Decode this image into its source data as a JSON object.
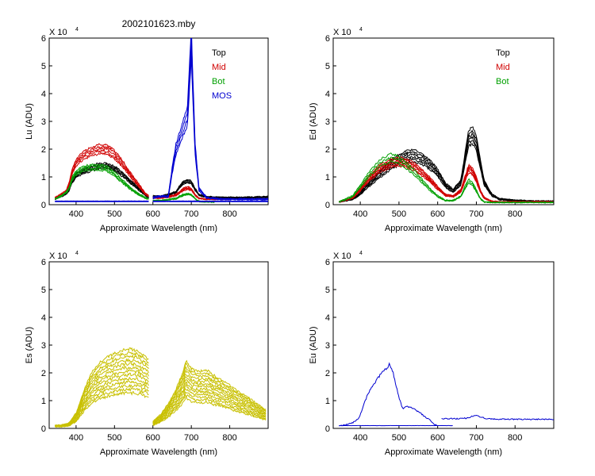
{
  "figure_title": "2002101623.mby",
  "exponent_base": "X 10",
  "exponent_power": "4",
  "chart_data": [
    {
      "type": "line",
      "id": "lu",
      "ylabel": "Lu (ADU)",
      "xlabel": "Approximate Wavelength (nm)",
      "xlim": [
        330,
        900
      ],
      "ylim": [
        0,
        6
      ],
      "y_unit_scale": "x10^4",
      "xticks": [
        400,
        500,
        600,
        700,
        800
      ],
      "yticks": [
        0,
        1,
        2,
        3,
        4,
        5,
        6
      ],
      "legend": {
        "placement": "top-right",
        "entries": [
          {
            "label": "Top",
            "color": "#000000"
          },
          {
            "label": "Mid",
            "color": "#d00000"
          },
          {
            "label": "Bot",
            "color": "#00a000"
          },
          {
            "label": "MOS",
            "color": "#0000d0"
          }
        ]
      },
      "series": [
        {
          "name": "Top",
          "color": "#000000",
          "count": 5,
          "spread": 0.07,
          "segments": [
            {
              "x": [
                345,
                360,
                375,
                382,
                390,
                400,
                420,
                440,
                460,
                480,
                500,
                520,
                540,
                560,
                580,
                590
              ],
              "y": [
                0.2,
                0.3,
                0.4,
                0.55,
                0.85,
                1.05,
                1.2,
                1.3,
                1.4,
                1.4,
                1.3,
                1.1,
                0.85,
                0.6,
                0.35,
                0.25
              ]
            },
            {
              "x": [
                600,
                620,
                640,
                660,
                670,
                680,
                690,
                700,
                710,
                720,
                740,
                760,
                800,
                850,
                900
              ],
              "y": [
                0.3,
                0.3,
                0.35,
                0.45,
                0.65,
                0.8,
                0.85,
                0.8,
                0.55,
                0.35,
                0.28,
                0.26,
                0.25,
                0.26,
                0.28
              ]
            }
          ]
        },
        {
          "name": "Mid",
          "color": "#d00000",
          "count": 5,
          "spread": 0.08,
          "segments": [
            {
              "x": [
                345,
                360,
                375,
                382,
                390,
                400,
                420,
                440,
                460,
                480,
                500,
                520,
                540,
                560,
                580,
                590
              ],
              "y": [
                0.25,
                0.35,
                0.5,
                0.75,
                1.2,
                1.5,
                1.8,
                1.9,
                2.0,
                2.0,
                1.8,
                1.5,
                1.1,
                0.75,
                0.4,
                0.3
              ]
            },
            {
              "x": [
                600,
                620,
                640,
                660,
                670,
                680,
                690,
                700,
                710,
                720,
                740,
                760,
                800
              ],
              "y": [
                0.25,
                0.25,
                0.28,
                0.35,
                0.45,
                0.55,
                0.6,
                0.55,
                0.35,
                0.22,
                0.2,
                0.2,
                0.2
              ]
            }
          ]
        },
        {
          "name": "Bot",
          "color": "#00a000",
          "count": 4,
          "spread": 0.07,
          "segments": [
            {
              "x": [
                345,
                360,
                375,
                382,
                390,
                400,
                420,
                440,
                460,
                480,
                500,
                520,
                540,
                560,
                580,
                590
              ],
              "y": [
                0.2,
                0.3,
                0.45,
                0.6,
                0.95,
                1.15,
                1.3,
                1.35,
                1.35,
                1.3,
                1.1,
                0.85,
                0.6,
                0.4,
                0.25,
                0.2
              ]
            },
            {
              "x": [
                600,
                620,
                640,
                660,
                670,
                680,
                690,
                700,
                710,
                720,
                740,
                760
              ],
              "y": [
                0.15,
                0.15,
                0.18,
                0.22,
                0.3,
                0.35,
                0.38,
                0.35,
                0.22,
                0.12,
                0.1,
                0.1
              ]
            }
          ]
        },
        {
          "name": "MOS",
          "color": "#0000d0",
          "count": 4,
          "spread": 0.1,
          "segments": [
            {
              "x": [
                600,
                620,
                640,
                650,
                660,
                670,
                680,
                690,
                695,
                700,
                705,
                710,
                720,
                740,
                780,
                850,
                900
              ],
              "y": [
                0.25,
                0.3,
                0.3,
                1.2,
                2.0,
                2.4,
                2.8,
                3.2,
                4.5,
                5.9,
                3.8,
                2.0,
                0.55,
                0.25,
                0.2,
                0.2,
                0.2
              ]
            },
            {
              "x": [
                345,
                400,
                450,
                500,
                550,
                590
              ],
              "y": [
                0.12,
                0.12,
                0.12,
                0.12,
                0.12,
                0.12
              ]
            },
            {
              "x": [
                600,
                650,
                700,
                750,
                800,
                850,
                900
              ],
              "y": [
                0.12,
                0.12,
                0.12,
                0.12,
                0.12,
                0.12,
                0.12
              ]
            }
          ]
        }
      ]
    },
    {
      "type": "line",
      "id": "ed",
      "ylabel": "Ed (ADU)",
      "xlabel": "Approximate Wavelength (nm)",
      "xlim": [
        330,
        900
      ],
      "ylim": [
        0,
        6
      ],
      "y_unit_scale": "x10^4",
      "xticks": [
        400,
        500,
        600,
        700,
        800
      ],
      "yticks": [
        0,
        1,
        2,
        3,
        4,
        5,
        6
      ],
      "legend": {
        "placement": "top-right",
        "entries": [
          {
            "label": "Top",
            "color": "#000000"
          },
          {
            "label": "Mid",
            "color": "#d00000"
          },
          {
            "label": "Bot",
            "color": "#00a000"
          }
        ]
      },
      "series": [
        {
          "name": "Top",
          "color": "#000000",
          "count": 6,
          "spread": 0.12,
          "segments": [
            {
              "x": [
                345,
                380,
                400,
                420,
                450,
                480,
                500,
                520,
                540,
                560,
                580,
                600,
                620,
                640,
                660,
                670,
                680,
                690,
                700,
                710,
                720,
                740,
                760,
                800,
                850,
                900
              ],
              "y": [
                0.1,
                0.2,
                0.4,
                0.7,
                1.1,
                1.45,
                1.6,
                1.75,
                1.75,
                1.65,
                1.45,
                1.15,
                0.7,
                0.5,
                0.8,
                1.6,
                2.4,
                2.5,
                2.2,
                1.5,
                0.8,
                0.35,
                0.2,
                0.15,
                0.12,
                0.12
              ]
            }
          ]
        },
        {
          "name": "Mid",
          "color": "#d00000",
          "count": 6,
          "spread": 0.1,
          "segments": [
            {
              "x": [
                345,
                380,
                400,
                420,
                450,
                480,
                500,
                520,
                540,
                560,
                580,
                600,
                620,
                640,
                660,
                670,
                680,
                690,
                700,
                710,
                720,
                740,
                760,
                800,
                850,
                900
              ],
              "y": [
                0.1,
                0.25,
                0.55,
                0.9,
                1.3,
                1.5,
                1.55,
                1.5,
                1.35,
                1.15,
                0.9,
                0.6,
                0.35,
                0.3,
                0.5,
                0.9,
                1.3,
                1.2,
                0.9,
                0.5,
                0.25,
                0.12,
                0.1,
                0.1,
                0.1,
                0.1
              ]
            }
          ]
        },
        {
          "name": "Bot",
          "color": "#00a000",
          "count": 3,
          "spread": 0.08,
          "segments": [
            {
              "x": [
                345,
                380,
                400,
                420,
                450,
                480,
                500,
                520,
                540,
                560,
                580,
                600,
                620,
                640,
                660,
                670,
                680,
                690,
                700,
                710,
                720,
                740,
                760,
                800,
                850,
                900
              ],
              "y": [
                0.1,
                0.3,
                0.65,
                1.05,
                1.5,
                1.7,
                1.6,
                1.4,
                1.15,
                0.85,
                0.55,
                0.3,
                0.15,
                0.15,
                0.3,
                0.6,
                0.85,
                0.75,
                0.5,
                0.22,
                0.1,
                0.08,
                0.08,
                0.08,
                0.08,
                0.08
              ]
            }
          ]
        }
      ]
    },
    {
      "type": "line",
      "id": "es",
      "ylabel": "Es (ADU)",
      "xlabel": "Approximate Wavelength (nm)",
      "xlim": [
        330,
        900
      ],
      "ylim": [
        0,
        6
      ],
      "y_unit_scale": "x10^4",
      "xticks": [
        400,
        500,
        600,
        700,
        800
      ],
      "yticks": [
        0,
        1,
        2,
        3,
        4,
        5,
        6
      ],
      "series": [
        {
          "name": "",
          "color": "#c8c000",
          "count": 13,
          "spread_from": 0.45,
          "spread_to": 1.0,
          "segments": [
            {
              "x": [
                345,
                360,
                380,
                400,
                420,
                440,
                460,
                480,
                500,
                520,
                540,
                560,
                580,
                590
              ],
              "y": [
                0.12,
                0.12,
                0.18,
                0.55,
                1.35,
                2.0,
                2.35,
                2.55,
                2.7,
                2.8,
                2.85,
                2.8,
                2.6,
                2.45
              ]
            },
            {
              "x": [
                600,
                620,
                640,
                660,
                680,
                685,
                700,
                720,
                740,
                760,
                780,
                800,
                820,
                850,
                880,
                895
              ],
              "y": [
                0.25,
                0.5,
                0.9,
                1.4,
                2.1,
                2.45,
                2.15,
                2.05,
                2.1,
                1.9,
                1.75,
                1.55,
                1.35,
                1.1,
                0.8,
                0.65
              ]
            }
          ]
        }
      ]
    },
    {
      "type": "line",
      "id": "eu",
      "ylabel": "Eu (ADU)",
      "xlabel": "Approximate Wavelength (nm)",
      "xlim": [
        330,
        900
      ],
      "ylim": [
        0,
        6
      ],
      "y_unit_scale": "x10^4",
      "xticks": [
        400,
        500,
        600,
        700,
        800
      ],
      "yticks": [
        0,
        1,
        2,
        3,
        4,
        5,
        6
      ],
      "series": [
        {
          "name": "",
          "color": "#0000d0",
          "count": 1,
          "spread": 0,
          "segments": [
            {
              "x": [
                345,
                360,
                380,
                395,
                400,
                410,
                420,
                430,
                440,
                450,
                460,
                470,
                475,
                480,
                485,
                490,
                500,
                510,
                520,
                540,
                560,
                580,
                590,
                600
              ],
              "y": [
                0.1,
                0.12,
                0.2,
                0.35,
                0.5,
                0.9,
                1.25,
                1.5,
                1.7,
                1.9,
                2.05,
                2.2,
                2.3,
                2.15,
                2.0,
                1.7,
                1.1,
                0.7,
                0.8,
                0.7,
                0.5,
                0.3,
                0.15,
                0.1
              ]
            },
            {
              "x": [
                345,
                400,
                450,
                500,
                550,
                600,
                640
              ],
              "y": [
                0.1,
                0.1,
                0.1,
                0.1,
                0.1,
                0.1,
                0.1
              ]
            },
            {
              "x": [
                610,
                640,
                660,
                680,
                690,
                700,
                710,
                730,
                760,
                800,
                850,
                900
              ],
              "y": [
                0.35,
                0.35,
                0.35,
                0.38,
                0.45,
                0.48,
                0.4,
                0.35,
                0.33,
                0.33,
                0.33,
                0.33
              ]
            }
          ]
        }
      ]
    }
  ]
}
